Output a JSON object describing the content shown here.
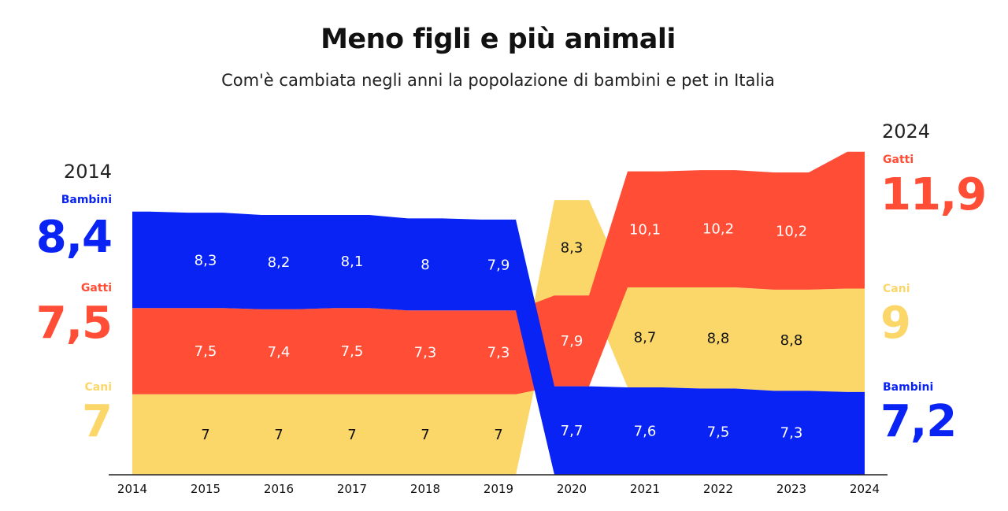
{
  "title": "Meno figli e più animali",
  "subtitle": "Com'è cambiata negli anni la popolazione di bambini e pet in Italia",
  "colors": {
    "bambini": "#0a23f5",
    "gatti": "#ff4d36",
    "cani": "#fbd76a",
    "axis": "#222222"
  },
  "left_panel": {
    "year": "2014",
    "entries": [
      {
        "label": "Bambini",
        "value": "8,4",
        "color": "#0a23f5"
      },
      {
        "label": "Gatti",
        "value": "7,5",
        "color": "#ff4d36"
      },
      {
        "label": "Cani",
        "value": "7",
        "color": "#fbd76a"
      }
    ]
  },
  "right_panel": {
    "year": "2024",
    "entries": [
      {
        "label": "Gatti",
        "value": "11,9",
        "color": "#ff4d36"
      },
      {
        "label": "Cani",
        "value": "9",
        "color": "#fbd76a"
      },
      {
        "label": "Bambini",
        "value": "7,2",
        "color": "#0a23f5"
      }
    ]
  },
  "chart_data": {
    "type": "area",
    "title": "Meno figli e più animali",
    "subtitle": "Com'è cambiata negli anni la popolazione di bambini e pet in Italia",
    "categories": [
      "2014",
      "2015",
      "2016",
      "2017",
      "2018",
      "2019",
      "2020",
      "2021",
      "2022",
      "2023",
      "2024"
    ],
    "series": [
      {
        "name": "Bambini",
        "values": [
          8.4,
          8.3,
          8.2,
          8.1,
          8.0,
          7.9,
          7.7,
          7.6,
          7.5,
          7.3,
          7.2
        ]
      },
      {
        "name": "Gatti",
        "values": [
          7.5,
          7.5,
          7.4,
          7.5,
          7.3,
          7.3,
          7.9,
          10.1,
          10.2,
          10.2,
          11.9
        ]
      },
      {
        "name": "Cani",
        "values": [
          7.0,
          7.0,
          7.0,
          7.0,
          7.0,
          7.0,
          8.3,
          8.7,
          8.8,
          8.8,
          9.0
        ]
      }
    ],
    "data_labels": {
      "Bambini": [
        "8,3",
        "8,2",
        "8,1",
        "8",
        "7,9",
        "7,7",
        "7,6",
        "7,5",
        "7,3"
      ],
      "Gatti": [
        "7,5",
        "7,4",
        "7,5",
        "7,3",
        "7,3",
        "7,9",
        "10,1",
        "10,2",
        "10,2"
      ],
      "Cani": [
        "7",
        "7",
        "7",
        "7",
        "7",
        "8,3",
        "8,7",
        "8,8",
        "8,8"
      ]
    },
    "stack_order_bottom_to_top": [
      [
        "Cani",
        "Gatti",
        "Bambini"
      ],
      [
        "Cani",
        "Gatti",
        "Bambini"
      ],
      [
        "Cani",
        "Gatti",
        "Bambini"
      ],
      [
        "Cani",
        "Gatti",
        "Bambini"
      ],
      [
        "Cani",
        "Gatti",
        "Bambini"
      ],
      [
        "Cani",
        "Gatti",
        "Bambini"
      ],
      [
        "Bambini",
        "Gatti",
        "Cani"
      ],
      [
        "Bambini",
        "Cani",
        "Gatti"
      ],
      [
        "Bambini",
        "Cani",
        "Gatti"
      ],
      [
        "Bambini",
        "Cani",
        "Gatti"
      ],
      [
        "Bambini",
        "Cani",
        "Gatti"
      ]
    ],
    "legend": "side panels",
    "grid": false
  }
}
